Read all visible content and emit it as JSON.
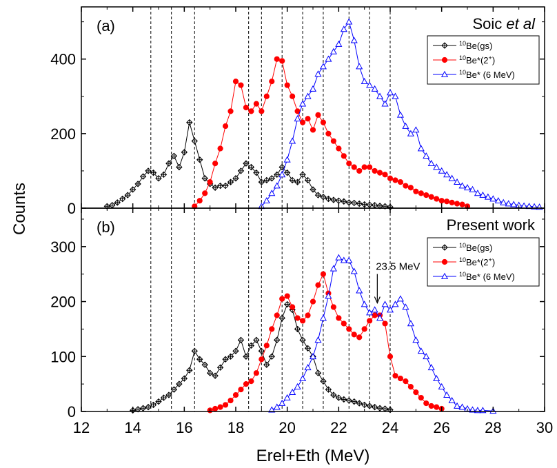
{
  "figure": {
    "ylabel": "Counts",
    "xlabel": "Erel+Eth (MeV)",
    "xlim": [
      12,
      30
    ],
    "xticks": [
      "12",
      "14",
      "16",
      "18",
      "20",
      "22",
      "24",
      "26",
      "28",
      "30"
    ],
    "dashed_lines_x": [
      14.7,
      15.5,
      16.4,
      18.5,
      19.0,
      19.8,
      20.6,
      21.4,
      22.4,
      23.2,
      24.0
    ],
    "colors": {
      "gs": "#000000",
      "ex2": "#ff0000",
      "ex6": "#0000ff"
    }
  },
  "chart_data": [
    {
      "type": "line",
      "panel_label": "(a)",
      "title": "Soic et al",
      "title_plain": "Soic ",
      "title_italic": "et al",
      "ylim": [
        0,
        540
      ],
      "yticks": [
        "0",
        "200",
        "400"
      ],
      "legend_position": "top-right",
      "series": [
        {
          "key": "gs",
          "name": "10Be(gs)",
          "sup": "10",
          "label": "Be(gs)",
          "marker": "diamond",
          "x": [
            13.0,
            13.2,
            13.4,
            13.6,
            13.8,
            14.0,
            14.2,
            14.4,
            14.6,
            14.8,
            15.0,
            15.2,
            15.4,
            15.6,
            15.8,
            16.0,
            16.2,
            16.4,
            16.6,
            16.8,
            17.0,
            17.2,
            17.4,
            17.6,
            17.8,
            18.0,
            18.2,
            18.4,
            18.6,
            18.8,
            19.0,
            19.2,
            19.4,
            19.6,
            19.8,
            20.0,
            20.2,
            20.4,
            20.6,
            20.8,
            21.0,
            21.2,
            21.4,
            21.6,
            21.8,
            22.0,
            22.2,
            22.4,
            22.6,
            22.8,
            23.0,
            23.2,
            23.4,
            23.6,
            23.8,
            24.0
          ],
          "y": [
            5,
            8,
            15,
            25,
            35,
            50,
            65,
            85,
            100,
            95,
            80,
            90,
            120,
            140,
            110,
            150,
            230,
            180,
            130,
            80,
            65,
            55,
            60,
            60,
            70,
            80,
            100,
            120,
            110,
            95,
            70,
            75,
            80,
            90,
            110,
            95,
            75,
            70,
            90,
            75,
            50,
            35,
            30,
            25,
            22,
            20,
            18,
            15,
            14,
            12,
            10,
            9,
            8,
            6,
            5,
            3
          ]
        },
        {
          "key": "ex2",
          "name": "10Be*(2+)",
          "sup": "10",
          "label": "Be*(2",
          "sup2": "+",
          "label2": ")",
          "marker": "circle",
          "x": [
            16.4,
            16.6,
            16.8,
            17.0,
            17.2,
            17.4,
            17.6,
            17.8,
            18.0,
            18.2,
            18.4,
            18.6,
            18.8,
            19.0,
            19.2,
            19.4,
            19.6,
            19.8,
            20.0,
            20.2,
            20.4,
            20.6,
            20.8,
            21.0,
            21.2,
            21.4,
            21.6,
            21.8,
            22.0,
            22.2,
            22.4,
            22.6,
            22.8,
            23.0,
            23.2,
            23.4,
            23.6,
            23.8,
            24.0,
            24.2,
            24.4,
            24.6,
            24.8,
            25.0,
            25.2,
            25.4,
            25.6,
            25.8,
            26.0,
            26.2,
            26.4,
            26.6,
            26.8,
            27.0
          ],
          "y": [
            5,
            20,
            40,
            70,
            120,
            160,
            220,
            260,
            340,
            330,
            270,
            260,
            280,
            260,
            300,
            340,
            400,
            395,
            330,
            300,
            260,
            230,
            240,
            210,
            250,
            230,
            200,
            180,
            160,
            140,
            120,
            110,
            100,
            110,
            110,
            100,
            95,
            90,
            80,
            75,
            70,
            60,
            55,
            45,
            40,
            35,
            30,
            25,
            20,
            18,
            15,
            12,
            10,
            5
          ]
        },
        {
          "key": "ex6",
          "name": "10Be* (6 MeV)",
          "sup": "10",
          "label": "Be* (6 MeV)",
          "marker": "triangle",
          "x": [
            19.0,
            19.2,
            19.4,
            19.6,
            19.8,
            20.0,
            20.2,
            20.4,
            20.6,
            20.8,
            21.0,
            21.2,
            21.4,
            21.6,
            21.8,
            22.0,
            22.2,
            22.4,
            22.6,
            22.8,
            23.0,
            23.2,
            23.4,
            23.6,
            23.8,
            24.0,
            24.2,
            24.4,
            24.6,
            24.8,
            25.0,
            25.2,
            25.4,
            25.6,
            25.8,
            26.0,
            26.2,
            26.4,
            26.6,
            26.8,
            27.0,
            27.2,
            27.4,
            27.6,
            27.8,
            28.0,
            28.2,
            28.4,
            28.6,
            28.8,
            29.0,
            29.2,
            29.4,
            29.6,
            29.8
          ],
          "y": [
            5,
            20,
            40,
            60,
            90,
            130,
            180,
            240,
            280,
            300,
            320,
            360,
            380,
            400,
            420,
            440,
            480,
            500,
            450,
            380,
            340,
            330,
            320,
            300,
            280,
            310,
            300,
            250,
            220,
            200,
            210,
            160,
            140,
            120,
            110,
            100,
            90,
            80,
            70,
            60,
            55,
            50,
            40,
            35,
            30,
            25,
            20,
            15,
            12,
            10,
            8,
            6,
            5,
            4,
            3
          ]
        }
      ]
    },
    {
      "type": "line",
      "panel_label": "(b)",
      "title": "Present work",
      "ylim": [
        0,
        370
      ],
      "yticks": [
        "0",
        "100",
        "200",
        "300"
      ],
      "legend_position": "top-right",
      "annotation": "23.5 MeV",
      "annotation_x": 23.5,
      "annotation_y": 190,
      "series": [
        {
          "key": "gs",
          "name": "10Be(gs)",
          "sup": "10",
          "label": "Be(gs)",
          "marker": "diamond",
          "x": [
            14.0,
            14.2,
            14.4,
            14.6,
            14.8,
            15.0,
            15.2,
            15.4,
            15.6,
            15.8,
            16.0,
            16.2,
            16.4,
            16.6,
            16.8,
            17.0,
            17.2,
            17.4,
            17.6,
            17.8,
            18.0,
            18.2,
            18.4,
            18.6,
            18.8,
            19.0,
            19.2,
            19.4,
            19.6,
            19.8,
            20.0,
            20.2,
            20.4,
            20.6,
            20.8,
            21.0,
            21.2,
            21.4,
            21.6,
            21.8,
            22.0,
            22.2,
            22.4,
            22.6,
            22.8,
            23.0,
            23.2,
            23.4,
            23.6,
            23.8,
            24.0
          ],
          "y": [
            2,
            4,
            6,
            8,
            12,
            18,
            25,
            30,
            40,
            50,
            60,
            75,
            110,
            95,
            85,
            70,
            65,
            80,
            95,
            100,
            110,
            130,
            100,
            120,
            130,
            110,
            85,
            100,
            130,
            170,
            195,
            185,
            150,
            130,
            115,
            100,
            70,
            55,
            40,
            30,
            25,
            22,
            20,
            18,
            15,
            12,
            10,
            8,
            6,
            5,
            3
          ]
        },
        {
          "key": "ex2",
          "name": "10Be*(2+)",
          "sup": "10",
          "label": "Be*(2",
          "sup2": "+",
          "label2": ")",
          "marker": "circle",
          "x": [
            17.0,
            17.2,
            17.4,
            17.6,
            17.8,
            18.0,
            18.2,
            18.4,
            18.6,
            18.8,
            19.0,
            19.2,
            19.4,
            19.6,
            19.8,
            20.0,
            20.2,
            20.4,
            20.6,
            20.8,
            21.0,
            21.2,
            21.4,
            21.6,
            21.8,
            22.0,
            22.2,
            22.4,
            22.6,
            22.8,
            23.0,
            23.2,
            23.4,
            23.6,
            23.8,
            24.0,
            24.2,
            24.4,
            24.6,
            24.8,
            25.0,
            25.2,
            25.4,
            25.6,
            25.8,
            26.0
          ],
          "y": [
            2,
            5,
            8,
            12,
            20,
            30,
            40,
            50,
            55,
            70,
            95,
            120,
            150,
            175,
            205,
            210,
            190,
            170,
            165,
            175,
            200,
            230,
            250,
            215,
            190,
            170,
            160,
            150,
            140,
            135,
            150,
            165,
            175,
            175,
            160,
            100,
            65,
            60,
            55,
            45,
            35,
            25,
            15,
            10,
            8,
            5
          ]
        },
        {
          "key": "ex6",
          "name": "10Be* (6 MeV)",
          "sup": "10",
          "label": "Be* (6 MeV)",
          "marker": "triangle",
          "x": [
            19.4,
            19.6,
            19.8,
            20.0,
            20.2,
            20.4,
            20.6,
            20.8,
            21.0,
            21.2,
            21.4,
            21.6,
            21.8,
            22.0,
            22.2,
            22.4,
            22.6,
            22.8,
            23.0,
            23.2,
            23.4,
            23.6,
            23.8,
            24.0,
            24.2,
            24.4,
            24.6,
            24.8,
            25.0,
            25.2,
            25.4,
            25.6,
            25.8,
            26.0,
            26.2,
            26.4,
            26.6,
            26.8,
            27.0,
            27.2,
            27.4,
            27.6,
            28.0
          ],
          "y": [
            3,
            8,
            15,
            25,
            35,
            45,
            60,
            80,
            100,
            130,
            170,
            210,
            260,
            280,
            275,
            275,
            255,
            220,
            195,
            180,
            185,
            170,
            195,
            185,
            195,
            205,
            190,
            160,
            130,
            110,
            100,
            80,
            60,
            45,
            30,
            20,
            10,
            8,
            5,
            3,
            2,
            2,
            1
          ]
        }
      ]
    }
  ]
}
